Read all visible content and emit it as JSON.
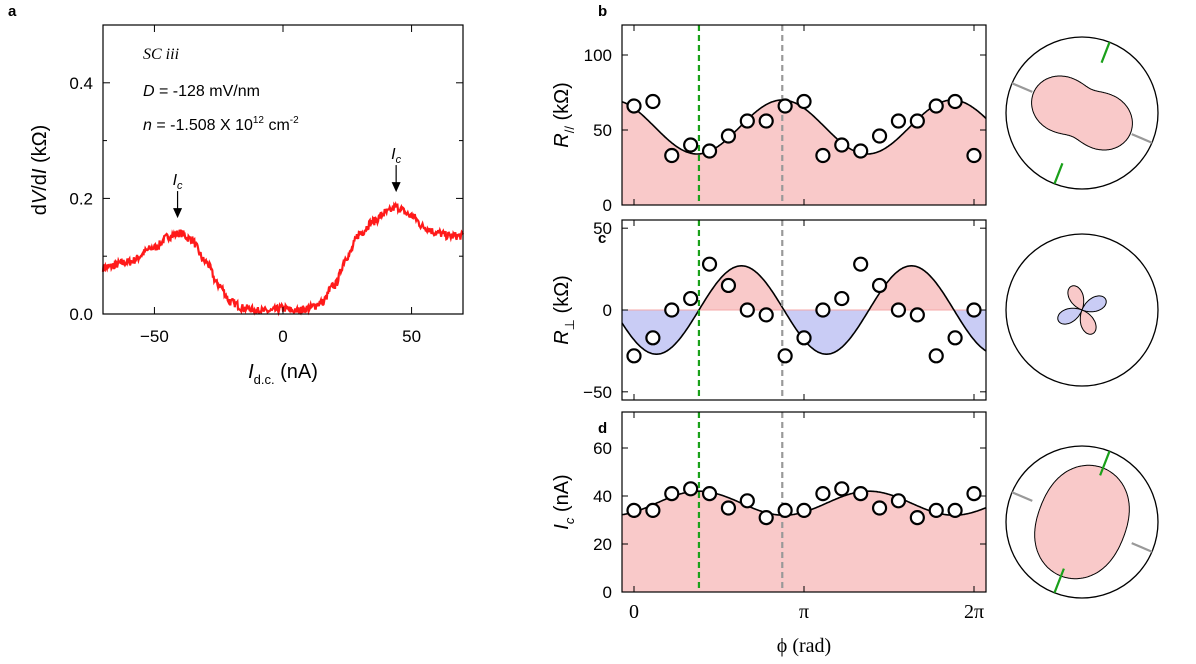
{
  "chart_data": [
    {
      "panel": "a",
      "type": "line",
      "title_lines": {
        "sample": "SC iii",
        "d_var": "D",
        "d_val": " = -128 mV/nm",
        "n_var": "n",
        "n_val": " = -1.508 X 10",
        "n_exp": "12",
        "n_unit": " cm",
        "n_unit_exp": "-2"
      },
      "xlabel": {
        "var": "I",
        "sub": "d.c.",
        "unit": " (nA)"
      },
      "ylabel": {
        "pre": "d",
        "v": "V",
        "mid": "/d",
        "i": "I",
        "unit": " (kΩ)"
      },
      "xlim": [
        -70,
        70
      ],
      "ylim": [
        0,
        0.5
      ],
      "xticks": [
        -50,
        0,
        50
      ],
      "xtick_labels": [
        "−50",
        "0",
        "50"
      ],
      "yticks": [
        0,
        0.2,
        0.4
      ],
      "ytick_labels": [
        "0.0",
        "0.2",
        "0.4"
      ],
      "color": "#ff1a1a",
      "series_anchor_points": {
        "x": [
          -70,
          -60,
          -50,
          -44,
          -40,
          -36,
          -30,
          -25,
          -20,
          -15,
          -10,
          -5,
          0,
          5,
          10,
          15,
          20,
          25,
          30,
          35,
          40,
          44,
          50,
          55,
          60,
          65,
          70
        ],
        "y": [
          0.08,
          0.09,
          0.115,
          0.135,
          0.14,
          0.13,
          0.09,
          0.05,
          0.02,
          0.01,
          0.005,
          0.005,
          0.01,
          0.005,
          0.01,
          0.02,
          0.05,
          0.1,
          0.14,
          0.16,
          0.175,
          0.185,
          0.17,
          0.15,
          0.14,
          0.135,
          0.135
        ]
      },
      "annotations": [
        {
          "var": "I",
          "sub": "c",
          "x": -41,
          "y": 0.14
        },
        {
          "var": "I",
          "sub": "c",
          "x": 44,
          "y": 0.185
        }
      ]
    },
    {
      "panel": "b",
      "type": "scatter",
      "ylabel": {
        "var": "R",
        "sub": "//",
        "unit": " (kΩ)"
      },
      "ylim": [
        0,
        120
      ],
      "yticks": [
        0,
        50,
        100
      ],
      "ytick_labels": [
        "0",
        "50",
        "100"
      ],
      "x_rad": [
        0,
        0.349,
        0.698,
        1.047,
        1.396,
        1.745,
        2.094,
        2.443,
        2.793,
        3.142,
        3.491,
        3.84,
        4.189,
        4.538,
        4.887,
        5.236,
        5.585,
        5.934,
        6.283
      ],
      "values": [
        66,
        69,
        33,
        40,
        36,
        46,
        56,
        56,
        66,
        69,
        33,
        40,
        36,
        46,
        56,
        56,
        66,
        69,
        33
      ],
      "fit": {
        "offset": 52,
        "amp": 18,
        "phase_max_rad": 2.74,
        "fill": "#f9c9c9",
        "line": "#000"
      }
    },
    {
      "panel": "c",
      "type": "scatter",
      "ylabel": {
        "var": "R",
        "sub": "⊥",
        "unit": " (kΩ)"
      },
      "ylim": [
        -55,
        55
      ],
      "yticks": [
        -50,
        0,
        50
      ],
      "ytick_labels": [
        "−50",
        "0",
        "50"
      ],
      "x_rad": [
        0,
        0.349,
        0.698,
        1.047,
        1.396,
        1.745,
        2.094,
        2.443,
        2.793,
        3.142,
        3.491,
        3.84,
        4.189,
        4.538,
        4.887,
        5.236,
        5.585,
        5.934,
        6.283
      ],
      "values": [
        -28,
        -17,
        0,
        7,
        28,
        15,
        0,
        -3,
        -28,
        -17,
        0,
        7,
        28,
        15,
        0,
        -3,
        -28,
        -17,
        0
      ],
      "fit": {
        "amp": 27,
        "phase_zero_rad": 1.2,
        "pos_fill": "#f9c9c9",
        "neg_fill": "#c9ccf5",
        "line": "#000"
      }
    },
    {
      "panel": "d",
      "type": "scatter",
      "ylabel": {
        "var": "I",
        "sub": "c",
        "unit": " (nA)"
      },
      "ylim": [
        0,
        75
      ],
      "yticks": [
        0,
        20,
        40,
        60
      ],
      "ytick_labels": [
        "0",
        "20",
        "40",
        "60"
      ],
      "x_rad": [
        0,
        0.349,
        0.698,
        1.047,
        1.396,
        1.745,
        2.094,
        2.443,
        2.793,
        3.142,
        3.491,
        3.84,
        4.189,
        4.538,
        4.887,
        5.236,
        5.585,
        5.934,
        6.283
      ],
      "values": [
        34,
        34,
        41,
        43,
        41,
        35,
        38,
        31,
        34,
        34,
        41,
        43,
        41,
        35,
        38,
        31,
        34,
        34,
        41
      ],
      "fit": {
        "offset": 37,
        "amp": 5,
        "phase_max_rad": 1.2,
        "fill": "#f9c9c9",
        "line": "#000"
      }
    }
  ],
  "shared": {
    "xlabel": "ϕ (rad)",
    "xtick_labels": [
      "0",
      "π",
      "2π"
    ],
    "vline_green_rad": 1.2,
    "vline_gray_rad": 2.74,
    "green": "#1aa01a",
    "gray": "#999999"
  },
  "panel_labels": {
    "a": "a",
    "b": "b",
    "c": "c",
    "d": "d"
  }
}
